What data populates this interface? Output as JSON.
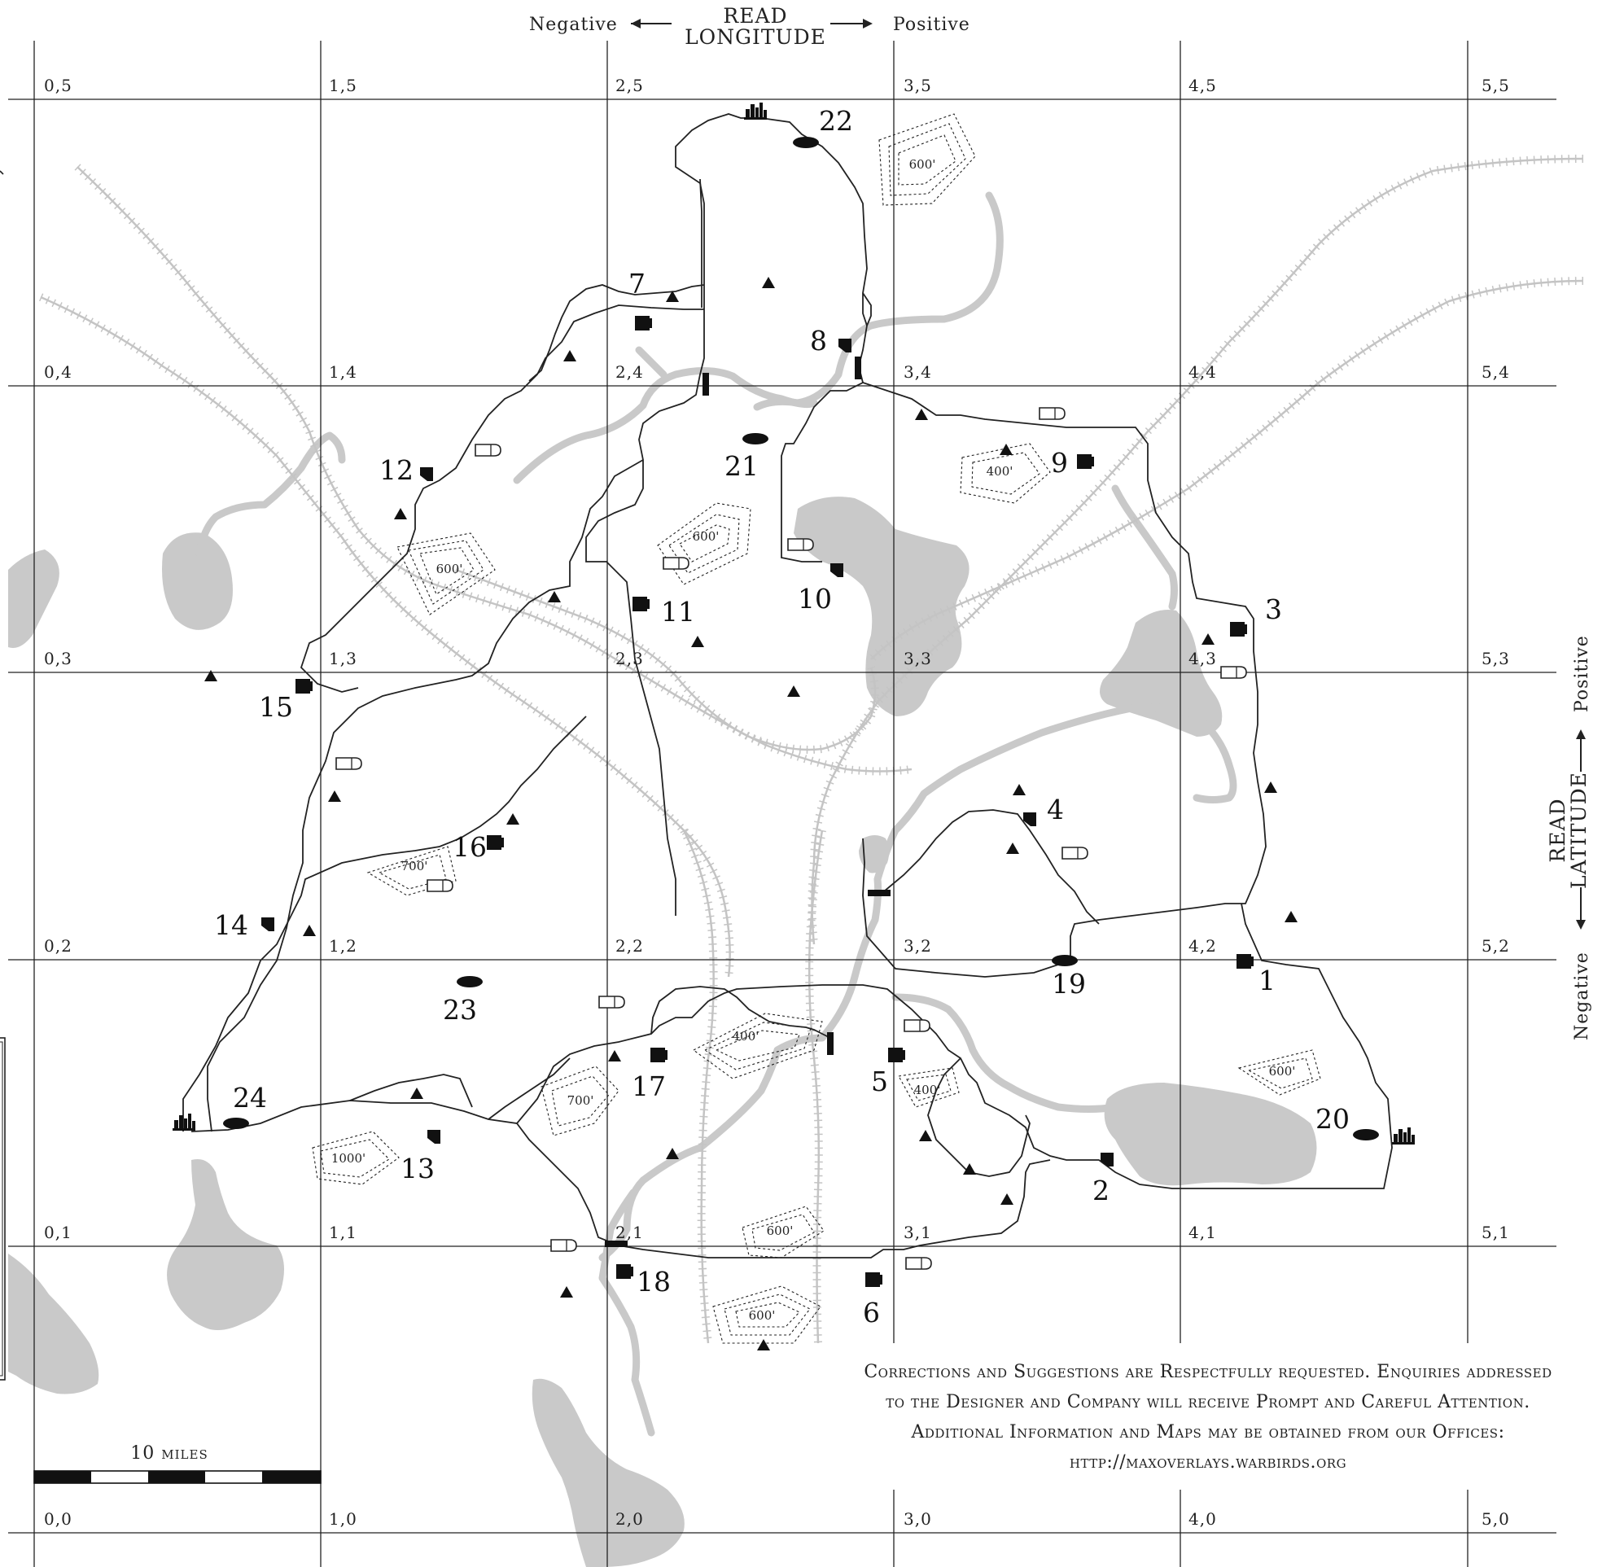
{
  "header": {
    "longitude_line1": "READ",
    "longitude_line2": "LONGITUDE",
    "negative": "Negative",
    "positive": "Positive"
  },
  "side": {
    "latitude_line1": "READ",
    "latitude_line2": "LATITUDE",
    "positive": "Positive",
    "negative": "Negative"
  },
  "grid_labels": {
    "r5": [
      "0,5",
      "1,5",
      "2,5",
      "3,5",
      "4,5",
      "5,5"
    ],
    "r4": [
      "0,4",
      "1,4",
      "2,4",
      "3,4",
      "4,4",
      "5,4"
    ],
    "r3": [
      "0,3",
      "1,3",
      "2,3",
      "3,3",
      "4,3",
      "5,3"
    ],
    "r2": [
      "0,2",
      "1,2",
      "2,2",
      "3,2",
      "4,2",
      "5,2"
    ],
    "r1": [
      "0,1",
      "1,1",
      "2,1",
      "3,1",
      "4,1",
      "5,1"
    ],
    "r0": [
      "0,0",
      "1,0",
      "2,0",
      "3,0",
      "4,0",
      "5,0"
    ]
  },
  "contours": {
    "c1": "600'",
    "c2": "400'",
    "c3": "600'",
    "c4": "600'",
    "c5": "700'",
    "c6": "400'",
    "c7": "700'",
    "c8": "400'",
    "c9": "1000'",
    "c10": "600'",
    "c11": "600'",
    "c12": "600'"
  },
  "targets": {
    "t1": "1",
    "t2": "2",
    "t3": "3",
    "t4": "4",
    "t5": "5",
    "t6": "6",
    "t7": "7",
    "t8": "8",
    "t9": "9",
    "t10": "10",
    "t11": "11",
    "t12": "12",
    "t13": "13",
    "t14": "14",
    "t15": "15",
    "t16": "16",
    "t17": "17",
    "t18": "18",
    "t19": "19",
    "t20": "20",
    "t21": "21",
    "t22": "22",
    "t23": "23",
    "t24": "24"
  },
  "scale": {
    "label": "10 miles"
  },
  "footer": {
    "line1": "Corrections and Suggestions are Respectfully requested. Enquiries addressed",
    "line2": "to the Designer and Company will receive Prompt and Careful Attention.",
    "line3": "Additional Information and Maps may be obtained from our Offices:",
    "line4": "http://maxoverlays.warbirds.org"
  },
  "colors": {
    "terrain": "#c9c9c9",
    "ink": "#222222"
  }
}
